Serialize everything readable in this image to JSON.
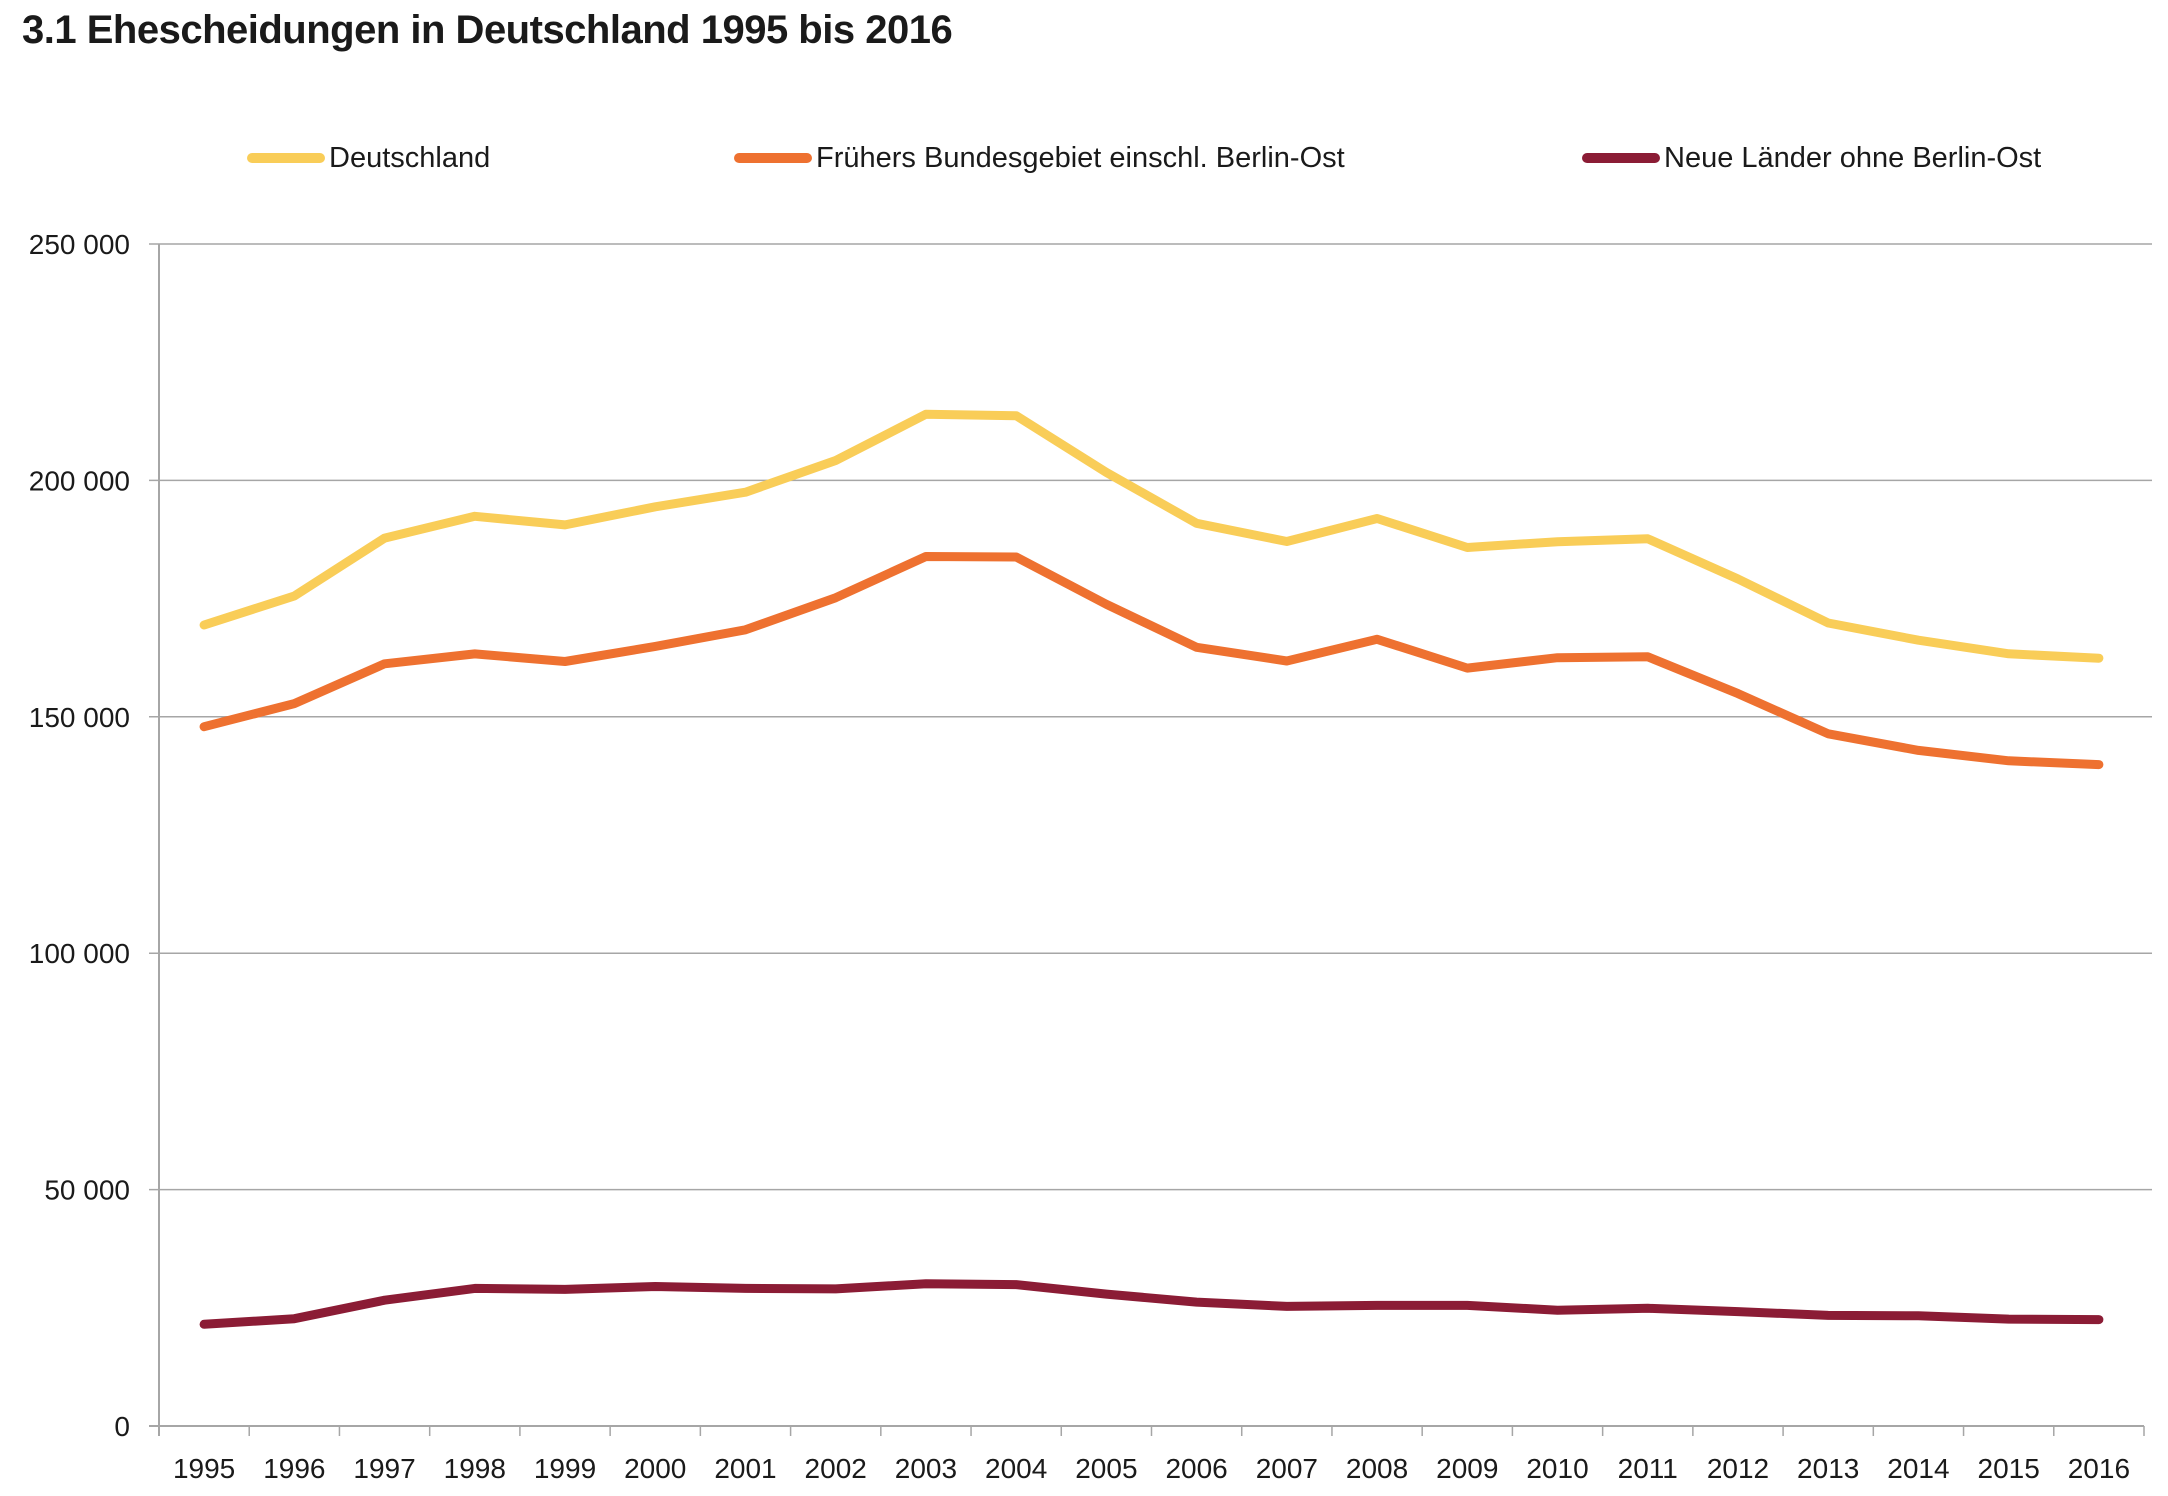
{
  "title": "3.1  Ehescheidungen in Deutschland 1995 bis 2016",
  "chart_data": {
    "type": "line",
    "title": "3.1  Ehescheidungen in Deutschland 1995 bis 2016",
    "xlabel": "",
    "ylabel": "",
    "categories": [
      "1995",
      "1996",
      "1997",
      "1998",
      "1999",
      "2000",
      "2001",
      "2002",
      "2003",
      "2004",
      "2005",
      "2006",
      "2007",
      "2008",
      "2009",
      "2010",
      "2011",
      "2012",
      "2013",
      "2014",
      "2015",
      "2016"
    ],
    "ylim": [
      0,
      250000
    ],
    "yticks": [
      0,
      50000,
      100000,
      150000,
      200000,
      250000
    ],
    "ytick_labels": [
      "0",
      "50 000",
      "100 000",
      "150 000",
      "200 000",
      "250 000"
    ],
    "grid": true,
    "legend_position": "top",
    "series": [
      {
        "name": "Deutschland",
        "color": "#f9cd58",
        "values": [
          169425,
          175550,
          187802,
          192416,
          190590,
          194408,
          197498,
          204214,
          213975,
          213691,
          201693,
          190928,
          187072,
          191948,
          185817,
          187027,
          187640,
          179147,
          169833,
          166199,
          163335,
          162397
        ]
      },
      {
        "name": "Frühers Bundesgebiet einschl. Berlin-Ost",
        "color": "#ee7130",
        "values": [
          147900,
          152800,
          161200,
          163300,
          161700,
          164900,
          168400,
          175200,
          183900,
          183800,
          173800,
          164700,
          161800,
          166400,
          160300,
          162500,
          162700,
          154900,
          146400,
          142900,
          140700,
          139900
        ]
      },
      {
        "name": "Neue Länder ohne Berlin-Ost",
        "color": "#8b1c35",
        "values": [
          21500,
          22700,
          26600,
          29100,
          28900,
          29500,
          29100,
          29000,
          30100,
          29900,
          27900,
          26200,
          25300,
          25500,
          25500,
          24500,
          24900,
          24200,
          23400,
          23300,
          22600,
          22500
        ]
      }
    ]
  }
}
